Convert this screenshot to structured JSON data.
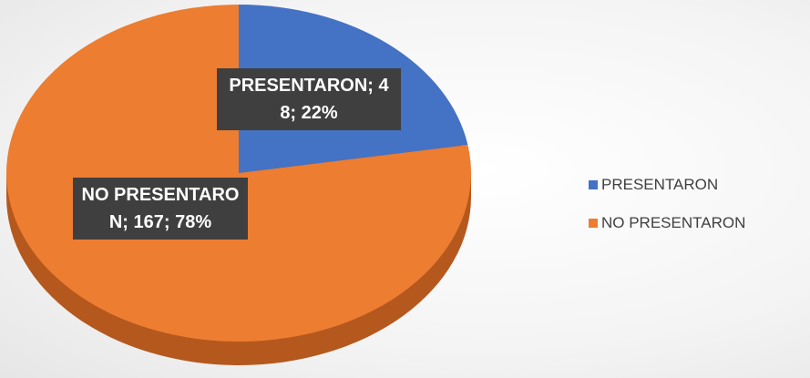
{
  "chart_data": {
    "type": "pie",
    "categories": [
      "PRESENTARON",
      "NO PRESENTARON"
    ],
    "values": [
      48,
      167
    ],
    "value_labels": [
      "PRESENTARON; 48; 22%",
      "NO PRESENTARON; 167; 78%"
    ],
    "colors": [
      "#4472c4",
      "#ed7d31"
    ],
    "three_d": true,
    "legend": "right"
  }
}
